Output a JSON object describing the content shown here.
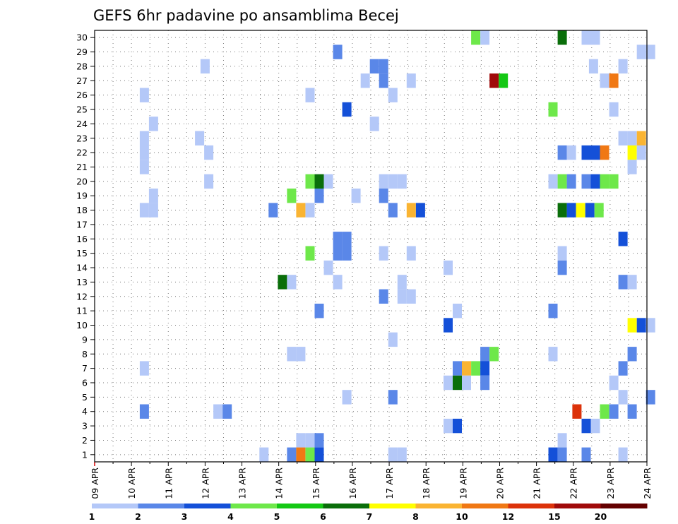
{
  "chart_data": {
    "type": "heatmap",
    "title": "GEFS 6hr padavine po ansamblima Becej",
    "x_tick_labels": [
      "09 APR",
      "10 APR",
      "11 APR",
      "12 APR",
      "13 APR",
      "14 APR",
      "15 APR",
      "16 APR",
      "17 APR",
      "18 APR",
      "19 APR",
      "20 APR",
      "21 APR",
      "22 APR",
      "23 APR",
      "24 APR"
    ],
    "x_range_days": [
      0,
      15
    ],
    "y_tick_labels": [
      "1",
      "2",
      "3",
      "4",
      "5",
      "6",
      "7",
      "8",
      "9",
      "10",
      "11",
      "12",
      "13",
      "14",
      "15",
      "16",
      "17",
      "18",
      "19",
      "20",
      "21",
      "22",
      "23",
      "24",
      "25",
      "26",
      "27",
      "28",
      "29",
      "30"
    ],
    "grid": true,
    "colorbar": {
      "position": "bottom",
      "tick_labels": [
        "1",
        "2",
        "3",
        "4",
        "5",
        "6",
        "7",
        "8",
        "10",
        "12",
        "15",
        "20"
      ],
      "colors": [
        "#b4c8f8",
        "#5a87e8",
        "#1450d8",
        "#6ee84a",
        "#14c814",
        "#0a6e0a",
        "#ffff00",
        "#fab432",
        "#f07814",
        "#dc320a",
        "#a00a0a",
        "#640000"
      ]
    },
    "level_colors": {
      "1": "#b4c8f8",
      "2": "#5a87e8",
      "3": "#1450d8",
      "4": "#6ee84a",
      "5": "#14c814",
      "6": "#0a6e0a",
      "7": "#ffff00",
      "8": "#fab432",
      "10": "#f07814",
      "12": "#dc320a",
      "15": "#a00a0a",
      "20": "#640000"
    },
    "cells": [
      {
        "m": 30,
        "d": 10.35,
        "v": 4
      },
      {
        "m": 30,
        "d": 10.6,
        "v": 1
      },
      {
        "m": 30,
        "d": 12.7,
        "v": 6
      },
      {
        "m": 30,
        "d": 13.35,
        "v": 1
      },
      {
        "m": 30,
        "d": 13.6,
        "v": 1
      },
      {
        "m": 29,
        "d": 6.6,
        "v": 2
      },
      {
        "m": 29,
        "d": 14.85,
        "v": 1
      },
      {
        "m": 29,
        "d": 15.1,
        "v": 1
      },
      {
        "m": 28,
        "d": 3.0,
        "v": 1
      },
      {
        "m": 28,
        "d": 7.6,
        "v": 2
      },
      {
        "m": 28,
        "d": 7.85,
        "v": 2
      },
      {
        "m": 28,
        "d": 13.55,
        "v": 1
      },
      {
        "m": 28,
        "d": 14.35,
        "v": 1
      },
      {
        "m": 27,
        "d": 7.35,
        "v": 1
      },
      {
        "m": 27,
        "d": 7.85,
        "v": 2
      },
      {
        "m": 27,
        "d": 8.6,
        "v": 1
      },
      {
        "m": 27,
        "d": 10.85,
        "v": 15
      },
      {
        "m": 27,
        "d": 11.1,
        "v": 5
      },
      {
        "m": 27,
        "d": 13.85,
        "v": 1
      },
      {
        "m": 27,
        "d": 14.1,
        "v": 10
      },
      {
        "m": 26,
        "d": 1.35,
        "v": 1
      },
      {
        "m": 26,
        "d": 5.85,
        "v": 1
      },
      {
        "m": 26,
        "d": 8.1,
        "v": 1
      },
      {
        "m": 25,
        "d": 6.85,
        "v": 3
      },
      {
        "m": 25,
        "d": 12.45,
        "v": 4
      },
      {
        "m": 25,
        "d": 14.1,
        "v": 1
      },
      {
        "m": 24,
        "d": 1.6,
        "v": 1
      },
      {
        "m": 24,
        "d": 7.6,
        "v": 1
      },
      {
        "m": 23,
        "d": 1.35,
        "v": 1
      },
      {
        "m": 23,
        "d": 2.85,
        "v": 1
      },
      {
        "m": 23,
        "d": 14.35,
        "v": 1
      },
      {
        "m": 23,
        "d": 14.6,
        "v": 1
      },
      {
        "m": 23,
        "d": 14.85,
        "v": 8
      },
      {
        "m": 22,
        "d": 1.35,
        "v": 1
      },
      {
        "m": 22,
        "d": 3.1,
        "v": 1
      },
      {
        "m": 22,
        "d": 12.7,
        "v": 2
      },
      {
        "m": 22,
        "d": 12.95,
        "v": 1
      },
      {
        "m": 22,
        "d": 13.35,
        "v": 3
      },
      {
        "m": 22,
        "d": 13.6,
        "v": 3
      },
      {
        "m": 22,
        "d": 13.85,
        "v": 10
      },
      {
        "m": 22,
        "d": 14.6,
        "v": 7
      },
      {
        "m": 22,
        "d": 14.85,
        "v": 1
      },
      {
        "m": 21,
        "d": 1.35,
        "v": 1
      },
      {
        "m": 21,
        "d": 14.6,
        "v": 1
      },
      {
        "m": 20,
        "d": 3.1,
        "v": 1
      },
      {
        "m": 20,
        "d": 5.85,
        "v": 4
      },
      {
        "m": 20,
        "d": 6.1,
        "v": 6
      },
      {
        "m": 20,
        "d": 6.35,
        "v": 1
      },
      {
        "m": 20,
        "d": 7.85,
        "v": 1
      },
      {
        "m": 20,
        "d": 8.1,
        "v": 1
      },
      {
        "m": 20,
        "d": 8.35,
        "v": 1
      },
      {
        "m": 20,
        "d": 12.45,
        "v": 1
      },
      {
        "m": 20,
        "d": 12.7,
        "v": 4
      },
      {
        "m": 20,
        "d": 12.95,
        "v": 2
      },
      {
        "m": 20,
        "d": 13.35,
        "v": 2
      },
      {
        "m": 20,
        "d": 13.6,
        "v": 3
      },
      {
        "m": 20,
        "d": 13.85,
        "v": 4
      },
      {
        "m": 20,
        "d": 14.1,
        "v": 4
      },
      {
        "m": 19,
        "d": 1.6,
        "v": 1
      },
      {
        "m": 19,
        "d": 5.35,
        "v": 4
      },
      {
        "m": 19,
        "d": 6.1,
        "v": 2
      },
      {
        "m": 19,
        "d": 7.1,
        "v": 1
      },
      {
        "m": 19,
        "d": 7.85,
        "v": 2
      },
      {
        "m": 18,
        "d": 1.35,
        "v": 1
      },
      {
        "m": 18,
        "d": 1.6,
        "v": 1
      },
      {
        "m": 18,
        "d": 4.85,
        "v": 2
      },
      {
        "m": 18,
        "d": 5.6,
        "v": 8
      },
      {
        "m": 18,
        "d": 5.85,
        "v": 1
      },
      {
        "m": 18,
        "d": 8.1,
        "v": 2
      },
      {
        "m": 18,
        "d": 8.6,
        "v": 8
      },
      {
        "m": 18,
        "d": 8.85,
        "v": 3
      },
      {
        "m": 18,
        "d": 12.7,
        "v": 6
      },
      {
        "m": 18,
        "d": 12.95,
        "v": 3
      },
      {
        "m": 18,
        "d": 13.2,
        "v": 7
      },
      {
        "m": 18,
        "d": 13.45,
        "v": 3
      },
      {
        "m": 18,
        "d": 13.7,
        "v": 4
      },
      {
        "m": 16,
        "d": 6.6,
        "v": 2
      },
      {
        "m": 16,
        "d": 6.85,
        "v": 2
      },
      {
        "m": 16,
        "d": 14.35,
        "v": 3
      },
      {
        "m": 15,
        "d": 5.85,
        "v": 4
      },
      {
        "m": 15,
        "d": 6.6,
        "v": 2
      },
      {
        "m": 15,
        "d": 6.85,
        "v": 2
      },
      {
        "m": 15,
        "d": 7.85,
        "v": 1
      },
      {
        "m": 15,
        "d": 8.6,
        "v": 1
      },
      {
        "m": 15,
        "d": 12.7,
        "v": 1
      },
      {
        "m": 14,
        "d": 6.35,
        "v": 1
      },
      {
        "m": 14,
        "d": 9.6,
        "v": 1
      },
      {
        "m": 14,
        "d": 12.7,
        "v": 2
      },
      {
        "m": 13,
        "d": 5.1,
        "v": 6
      },
      {
        "m": 13,
        "d": 5.35,
        "v": 1
      },
      {
        "m": 13,
        "d": 6.6,
        "v": 1
      },
      {
        "m": 13,
        "d": 8.35,
        "v": 1
      },
      {
        "m": 13,
        "d": 14.35,
        "v": 2
      },
      {
        "m": 13,
        "d": 14.6,
        "v": 1
      },
      {
        "m": 12,
        "d": 7.85,
        "v": 2
      },
      {
        "m": 12,
        "d": 8.35,
        "v": 1
      },
      {
        "m": 12,
        "d": 8.6,
        "v": 1
      },
      {
        "m": 11,
        "d": 6.1,
        "v": 2
      },
      {
        "m": 11,
        "d": 9.85,
        "v": 1
      },
      {
        "m": 11,
        "d": 12.45,
        "v": 2
      },
      {
        "m": 10,
        "d": 9.6,
        "v": 3
      },
      {
        "m": 10,
        "d": 14.6,
        "v": 7
      },
      {
        "m": 10,
        "d": 14.85,
        "v": 3
      },
      {
        "m": 10,
        "d": 15.1,
        "v": 1
      },
      {
        "m": 9,
        "d": 8.1,
        "v": 1
      },
      {
        "m": 8,
        "d": 5.35,
        "v": 1
      },
      {
        "m": 8,
        "d": 5.6,
        "v": 1
      },
      {
        "m": 8,
        "d": 10.6,
        "v": 2
      },
      {
        "m": 8,
        "d": 10.85,
        "v": 4
      },
      {
        "m": 8,
        "d": 12.45,
        "v": 1
      },
      {
        "m": 8,
        "d": 14.6,
        "v": 2
      },
      {
        "m": 7,
        "d": 1.35,
        "v": 1
      },
      {
        "m": 7,
        "d": 9.85,
        "v": 2
      },
      {
        "m": 7,
        "d": 10.1,
        "v": 8
      },
      {
        "m": 7,
        "d": 10.35,
        "v": 4
      },
      {
        "m": 7,
        "d": 10.6,
        "v": 3
      },
      {
        "m": 7,
        "d": 14.35,
        "v": 2
      },
      {
        "m": 6,
        "d": 9.6,
        "v": 1
      },
      {
        "m": 6,
        "d": 9.85,
        "v": 6
      },
      {
        "m": 6,
        "d": 10.1,
        "v": 1
      },
      {
        "m": 6,
        "d": 10.6,
        "v": 2
      },
      {
        "m": 6,
        "d": 14.1,
        "v": 1
      },
      {
        "m": 5,
        "d": 6.85,
        "v": 1
      },
      {
        "m": 5,
        "d": 8.1,
        "v": 2
      },
      {
        "m": 5,
        "d": 14.35,
        "v": 1
      },
      {
        "m": 5,
        "d": 15.1,
        "v": 2
      },
      {
        "m": 4,
        "d": 1.35,
        "v": 2
      },
      {
        "m": 4,
        "d": 3.35,
        "v": 1
      },
      {
        "m": 4,
        "d": 3.6,
        "v": 2
      },
      {
        "m": 4,
        "d": 13.1,
        "v": 12
      },
      {
        "m": 4,
        "d": 13.85,
        "v": 4
      },
      {
        "m": 4,
        "d": 14.1,
        "v": 2
      },
      {
        "m": 4,
        "d": 14.6,
        "v": 2
      },
      {
        "m": 3,
        "d": 9.6,
        "v": 1
      },
      {
        "m": 3,
        "d": 9.85,
        "v": 3
      },
      {
        "m": 3,
        "d": 13.35,
        "v": 3
      },
      {
        "m": 3,
        "d": 13.6,
        "v": 1
      },
      {
        "m": 2,
        "d": 5.6,
        "v": 1
      },
      {
        "m": 2,
        "d": 5.85,
        "v": 1
      },
      {
        "m": 2,
        "d": 6.1,
        "v": 2
      },
      {
        "m": 2,
        "d": 12.7,
        "v": 1
      },
      {
        "m": 1,
        "d": 4.6,
        "v": 1
      },
      {
        "m": 1,
        "d": 5.35,
        "v": 2
      },
      {
        "m": 1,
        "d": 5.6,
        "v": 10
      },
      {
        "m": 1,
        "d": 5.85,
        "v": 4
      },
      {
        "m": 1,
        "d": 6.1,
        "v": 3
      },
      {
        "m": 1,
        "d": 8.1,
        "v": 1
      },
      {
        "m": 1,
        "d": 8.35,
        "v": 1
      },
      {
        "m": 1,
        "d": 12.45,
        "v": 3
      },
      {
        "m": 1,
        "d": 12.7,
        "v": 2
      },
      {
        "m": 1,
        "d": 13.35,
        "v": 2
      },
      {
        "m": 1,
        "d": 14.35,
        "v": 1
      }
    ]
  }
}
